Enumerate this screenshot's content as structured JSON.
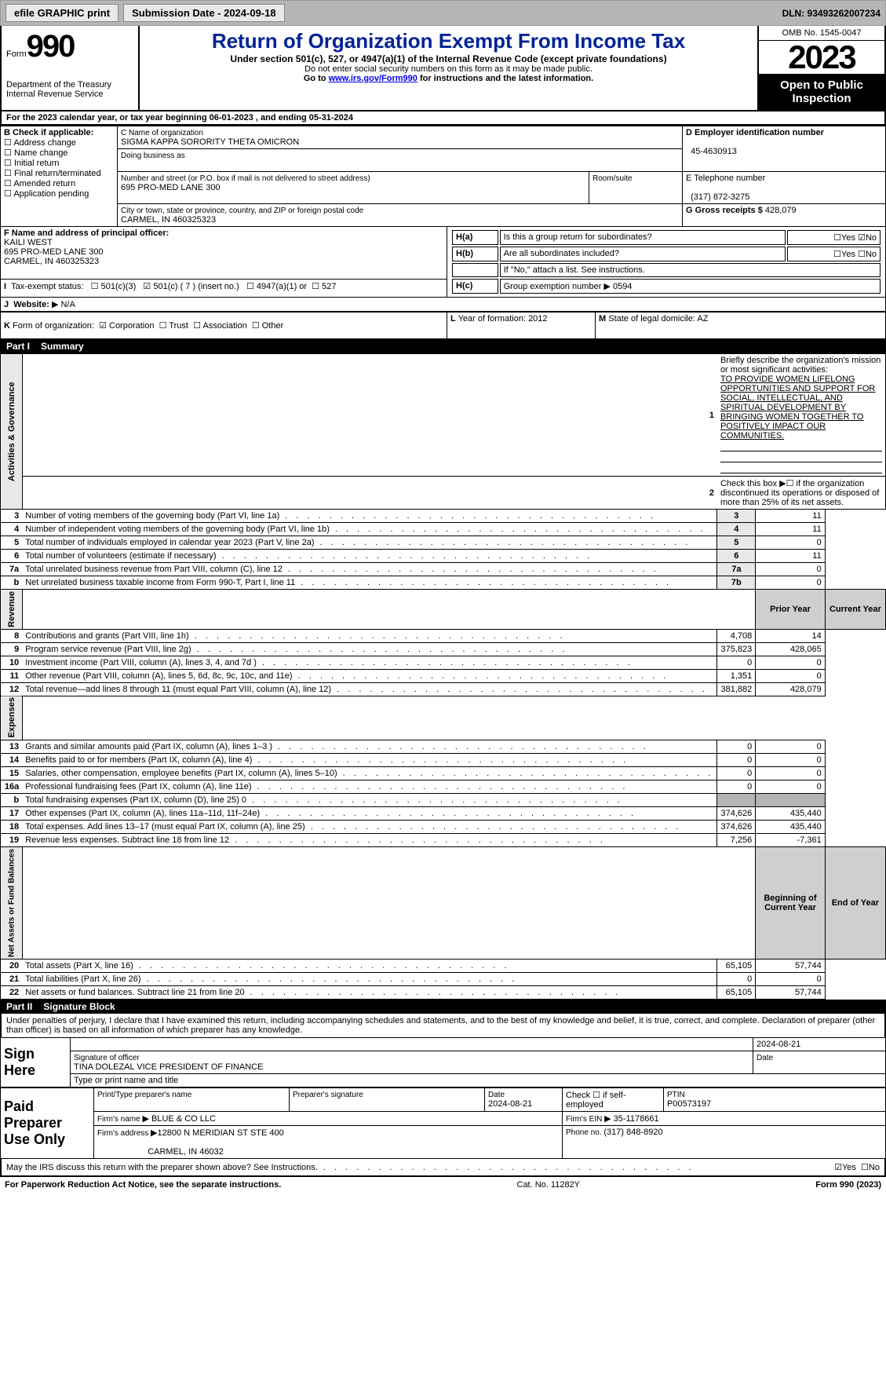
{
  "topbar": {
    "efile": "efile GRAPHIC print",
    "submission": "Submission Date - 2024-09-18",
    "dln": "DLN: 93493262007234"
  },
  "header": {
    "form_label": "Form",
    "form_no": "990",
    "dept": "Department of the Treasury",
    "irs": "Internal Revenue Service",
    "title": "Return of Organization Exempt From Income Tax",
    "subtitle": "Under section 501(c), 527, or 4947(a)(1) of the Internal Revenue Code (except private foundations)",
    "note1": "Do not enter social security numbers on this form as it may be made public.",
    "note2_pre": "Go to ",
    "note2_link": "www.irs.gov/Form990",
    "note2_post": " for instructions and the latest information.",
    "omb": "OMB No. 1545-0047",
    "year": "2023",
    "open": "Open to Public Inspection"
  },
  "periodA": "For the 2023 calendar year, or tax year beginning 06-01-2023    , and ending 05-31-2024",
  "boxB": {
    "title": "B Check if applicable:",
    "items": [
      "Address change",
      "Name change",
      "Initial return",
      "Final return/terminated",
      "Amended return",
      "Application pending"
    ]
  },
  "boxC": {
    "label": "C Name of organization",
    "name": "SIGMA KAPPA SORORITY THETA OMICRON",
    "dba": "Doing business as",
    "street_label": "Number and street (or P.O. box if mail is not delivered to street address)",
    "street": "695 PRO-MED LANE 300",
    "room": "Room/suite",
    "city_label": "City or town, state or province, country, and ZIP or foreign postal code",
    "city": "CARMEL, IN  460325323"
  },
  "boxD": {
    "label": "D Employer identification number",
    "val": "45-4630913"
  },
  "boxE": {
    "label": "E Telephone number",
    "val": "(317) 872-3275"
  },
  "boxG": {
    "label": "G Gross receipts $",
    "val": "428,079"
  },
  "boxF": {
    "label": "F  Name and address of principal officer:",
    "name": "KAILI WEST",
    "addr1": "695 PRO-MED LANE 300",
    "addr2": "CARMEL, IN  460325323"
  },
  "boxH": {
    "a": "Is this a group return for subordinates?",
    "b": "Are all subordinates included?",
    "note": "If \"No,\" attach a list. See instructions.",
    "c_label": "Group exemption number  ",
    "c_val": "0594",
    "yes": "Yes",
    "no": "No"
  },
  "boxI": {
    "label": "Tax-exempt status:",
    "opt1": "501(c)(3)",
    "opt2": "501(c) ( 7 ) (insert no.)",
    "opt3": "4947(a)(1) or",
    "opt4": "527"
  },
  "boxJ": {
    "label": "Website:  ",
    "val": "N/A"
  },
  "boxK": {
    "label": "Form of organization:",
    "c": "Corporation",
    "t": "Trust",
    "a": "Association",
    "o": "Other"
  },
  "boxL": {
    "label": "Year of formation: ",
    "val": "2012"
  },
  "boxM": {
    "label": "State of legal domicile: ",
    "val": "AZ"
  },
  "part1": {
    "title": "Part I",
    "name": "Summary",
    "line1_label": "Briefly describe the organization's mission or most significant activities:",
    "mission": "TO PROVIDE WOMEN LIFELONG OPPORTUNITIES AND SUPPORT FOR SOCIAL, INTELLECTUAL, AND SPIRITUAL DEVELOPMENT BY BRINGING WOMEN TOGETHER TO POSITIVELY IMPACT OUR COMMUNITIES.",
    "line2": "Check this box    if the organization discontinued its operations or disposed of more than 25% of its net assets.",
    "rows_gov": [
      {
        "n": "3",
        "t": "Number of voting members of the governing body (Part VI, line 1a)",
        "c": "3",
        "v": "11"
      },
      {
        "n": "4",
        "t": "Number of independent voting members of the governing body (Part VI, line 1b)",
        "c": "4",
        "v": "11"
      },
      {
        "n": "5",
        "t": "Total number of individuals employed in calendar year 2023 (Part V, line 2a)",
        "c": "5",
        "v": "0"
      },
      {
        "n": "6",
        "t": "Total number of volunteers (estimate if necessary)",
        "c": "6",
        "v": "11"
      },
      {
        "n": "7a",
        "t": "Total unrelated business revenue from Part VIII, column (C), line 12",
        "c": "7a",
        "v": "0"
      },
      {
        "n": "b",
        "t": "Net unrelated business taxable income from Form 990-T, Part I, line 11",
        "c": "7b",
        "v": "0"
      }
    ],
    "prior": "Prior Year",
    "current": "Current Year",
    "revenue": [
      {
        "n": "8",
        "t": "Contributions and grants (Part VIII, line 1h)",
        "p": "4,708",
        "c": "14"
      },
      {
        "n": "9",
        "t": "Program service revenue (Part VIII, line 2g)",
        "p": "375,823",
        "c": "428,065"
      },
      {
        "n": "10",
        "t": "Investment income (Part VIII, column (A), lines 3, 4, and 7d )",
        "p": "0",
        "c": "0"
      },
      {
        "n": "11",
        "t": "Other revenue (Part VIII, column (A), lines 5, 6d, 8c, 9c, 10c, and 11e)",
        "p": "1,351",
        "c": "0"
      },
      {
        "n": "12",
        "t": "Total revenue—add lines 8 through 11 (must equal Part VIII, column (A), line 12)",
        "p": "381,882",
        "c": "428,079"
      }
    ],
    "expenses": [
      {
        "n": "13",
        "t": "Grants and similar amounts paid (Part IX, column (A), lines 1–3 )",
        "p": "0",
        "c": "0"
      },
      {
        "n": "14",
        "t": "Benefits paid to or for members (Part IX, column (A), line 4)",
        "p": "0",
        "c": "0"
      },
      {
        "n": "15",
        "t": "Salaries, other compensation, employee benefits (Part IX, column (A), lines 5–10)",
        "p": "0",
        "c": "0"
      },
      {
        "n": "16a",
        "t": "Professional fundraising fees (Part IX, column (A), line 11e)",
        "p": "0",
        "c": "0"
      },
      {
        "n": "b",
        "t": "Total fundraising expenses (Part IX, column (D), line 25) 0",
        "p": "",
        "c": "",
        "grey": true
      },
      {
        "n": "17",
        "t": "Other expenses (Part IX, column (A), lines 11a–11d, 11f–24e)",
        "p": "374,626",
        "c": "435,440"
      },
      {
        "n": "18",
        "t": "Total expenses. Add lines 13–17 (must equal Part IX, column (A), line 25)",
        "p": "374,626",
        "c": "435,440"
      },
      {
        "n": "19",
        "t": "Revenue less expenses. Subtract line 18 from line 12",
        "p": "7,256",
        "c": "-7,361"
      }
    ],
    "begin": "Beginning of Current Year",
    "end": "End of Year",
    "netassets": [
      {
        "n": "20",
        "t": "Total assets (Part X, line 16)",
        "p": "65,105",
        "c": "57,744"
      },
      {
        "n": "21",
        "t": "Total liabilities (Part X, line 26)",
        "p": "0",
        "c": "0"
      },
      {
        "n": "22",
        "t": "Net assets or fund balances. Subtract line 21 from line 20",
        "p": "65,105",
        "c": "57,744"
      }
    ],
    "vtab_gov": "Activities & Governance",
    "vtab_rev": "Revenue",
    "vtab_exp": "Expenses",
    "vtab_net": "Net Assets or Fund Balances"
  },
  "part2": {
    "title": "Part II",
    "name": "Signature Block",
    "decl": "Under penalties of perjury, I declare that I have examined this return, including accompanying schedules and statements, and to the best of my knowledge and belief, it is true, correct, and complete. Declaration of preparer (other than officer) is based on all information of which preparer has any knowledge.",
    "signhere": "Sign Here",
    "sig_line": "Signature of officer",
    "officer": "TINA DOLEZAL  VICE PRESIDENT OF FINANCE",
    "typed": "Type or print name and title",
    "date": "Date",
    "date_val": "2024-08-21",
    "paid": "Paid Preparer Use Only",
    "prep_name_lbl": "Print/Type preparer's name",
    "prep_sig_lbl": "Preparer's signature",
    "date2": "2024-08-21",
    "check_self": "Check        if self-employed",
    "ptin_lbl": "PTIN",
    "ptin": "P00573197",
    "firm_name_lbl": "Firm's name   ",
    "firm_name": "BLUE & CO LLC",
    "firm_ein_lbl": "Firm's EIN  ",
    "firm_ein": "35-1178661",
    "firm_addr_lbl": "Firm's address ",
    "firm_addr": "12800 N MERIDIAN ST STE 400",
    "firm_city": "CARMEL, IN  46032",
    "phone_lbl": "Phone no. ",
    "phone": "(317) 848-8920",
    "discuss": "May the IRS discuss this return with the preparer shown above? See Instructions."
  },
  "footer": {
    "pra": "For Paperwork Reduction Act Notice, see the separate instructions.",
    "cat": "Cat. No. 11282Y",
    "form": "Form 990 (2023)"
  },
  "glyph": {
    "checked": "☑",
    "unchecked": "☐",
    "arrow": "▶"
  }
}
